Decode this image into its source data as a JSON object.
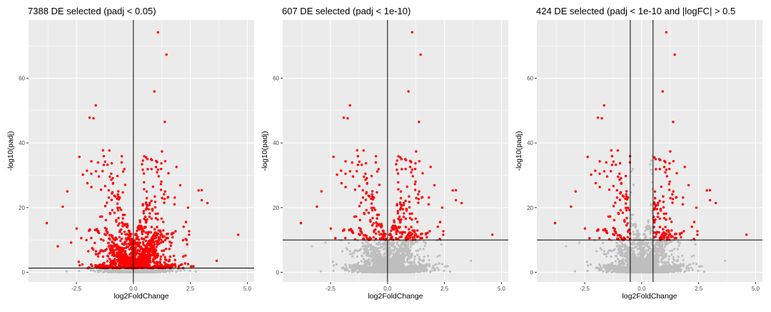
{
  "chart_data": [
    {
      "type": "scatter",
      "title": "7388 DE selected (padj < 0.05)",
      "xlabel": "log2FoldChange",
      "ylabel": "-log10(padj)",
      "xlim": [
        -4.6,
        5.3
      ],
      "ylim": [
        -3,
        78
      ],
      "xticks": [
        -2.5,
        0.0,
        2.5,
        5.0
      ],
      "xtick_labels": [
        "-2.5",
        "0.0",
        "2.5",
        "5.0"
      ],
      "yticks": [
        0,
        20,
        40,
        60
      ],
      "ytick_labels": [
        "0",
        "20",
        "40",
        "60"
      ],
      "grid": true,
      "background": "#EBEBEB",
      "hline": 1.3,
      "vlines": [
        0
      ],
      "colors": {
        "selected": "#FF0000",
        "not_selected": "#BEBEBE"
      },
      "selection": {
        "padj_threshold": 0.05,
        "abs_logfc_threshold": 0
      },
      "highlighted_points": [
        {
          "x": 1.08,
          "y": 74.2
        },
        {
          "x": 1.45,
          "y": 67.3
        },
        {
          "x": 0.92,
          "y": 55.9
        },
        {
          "x": -1.65,
          "y": 51.6
        },
        {
          "x": -1.92,
          "y": 47.8
        },
        {
          "x": -1.75,
          "y": 47.6
        },
        {
          "x": 1.38,
          "y": 46.5
        },
        {
          "x": 4.6,
          "y": 11.6
        },
        {
          "x": -3.8,
          "y": 15.2
        },
        {
          "x": 3.0,
          "y": 22.3
        },
        {
          "x": 3.25,
          "y": 21.4
        },
        {
          "x": -2.9,
          "y": 25.0
        },
        {
          "x": -3.1,
          "y": 20.3
        },
        {
          "x": 2.4,
          "y": 20.0
        }
      ]
    },
    {
      "type": "scatter",
      "title": "607 DE selected (padj < 1e-10)",
      "xlabel": "log2FoldChange",
      "ylabel": "-log10(padj)",
      "xlim": [
        -4.6,
        5.3
      ],
      "ylim": [
        -3,
        78
      ],
      "xticks": [
        -2.5,
        0.0,
        2.5,
        5.0
      ],
      "xtick_labels": [
        "-2.5",
        "0.0",
        "2.5",
        "5.0"
      ],
      "yticks": [
        0,
        20,
        40,
        60
      ],
      "ytick_labels": [
        "0",
        "20",
        "40",
        "60"
      ],
      "grid": true,
      "background": "#EBEBEB",
      "hline": 10,
      "vlines": [
        0
      ],
      "colors": {
        "selected": "#FF0000",
        "not_selected": "#BEBEBE"
      },
      "selection": {
        "padj_threshold": 1e-10,
        "abs_logfc_threshold": 0
      },
      "highlighted_points": [
        {
          "x": 1.08,
          "y": 74.2
        },
        {
          "x": 1.45,
          "y": 67.3
        },
        {
          "x": 0.92,
          "y": 55.9
        },
        {
          "x": -1.65,
          "y": 51.6
        },
        {
          "x": -1.92,
          "y": 47.8
        },
        {
          "x": -1.75,
          "y": 47.6
        },
        {
          "x": 1.38,
          "y": 46.5
        },
        {
          "x": 4.6,
          "y": 11.6
        },
        {
          "x": -3.8,
          "y": 15.2
        },
        {
          "x": 3.0,
          "y": 22.3
        },
        {
          "x": 3.25,
          "y": 21.4
        },
        {
          "x": -2.9,
          "y": 25.0
        },
        {
          "x": -3.1,
          "y": 20.3
        },
        {
          "x": 2.4,
          "y": 20.0
        }
      ]
    },
    {
      "type": "scatter",
      "title": "424 DE selected (padj < 1e-10 and |logFC| > 0.5",
      "xlabel": "log2FoldChange",
      "ylabel": "-log10(padj)",
      "xlim": [
        -4.6,
        5.3
      ],
      "ylim": [
        -3,
        78
      ],
      "xticks": [
        -2.5,
        0.0,
        2.5,
        5.0
      ],
      "xtick_labels": [
        "-2.5",
        "0.0",
        "2.5",
        "5.0"
      ],
      "yticks": [
        0,
        20,
        40,
        60
      ],
      "ytick_labels": [
        "0",
        "20",
        "40",
        "60"
      ],
      "grid": true,
      "background": "#EBEBEB",
      "hline": 10,
      "vlines": [
        -0.5,
        0.5
      ],
      "colors": {
        "selected": "#FF0000",
        "not_selected": "#BEBEBE"
      },
      "selection": {
        "padj_threshold": 1e-10,
        "abs_logfc_threshold": 0.5
      },
      "highlighted_points": [
        {
          "x": 1.08,
          "y": 74.2
        },
        {
          "x": 1.45,
          "y": 67.3
        },
        {
          "x": 0.92,
          "y": 55.9
        },
        {
          "x": -1.65,
          "y": 51.6
        },
        {
          "x": -1.92,
          "y": 47.8
        },
        {
          "x": -1.75,
          "y": 47.6
        },
        {
          "x": 1.38,
          "y": 46.5
        },
        {
          "x": 4.6,
          "y": 11.6
        },
        {
          "x": -3.8,
          "y": 15.2
        },
        {
          "x": 3.0,
          "y": 22.3
        },
        {
          "x": 3.25,
          "y": 21.4
        },
        {
          "x": -2.9,
          "y": 25.0
        },
        {
          "x": -3.1,
          "y": 20.3
        },
        {
          "x": 2.4,
          "y": 20.0
        }
      ]
    }
  ]
}
